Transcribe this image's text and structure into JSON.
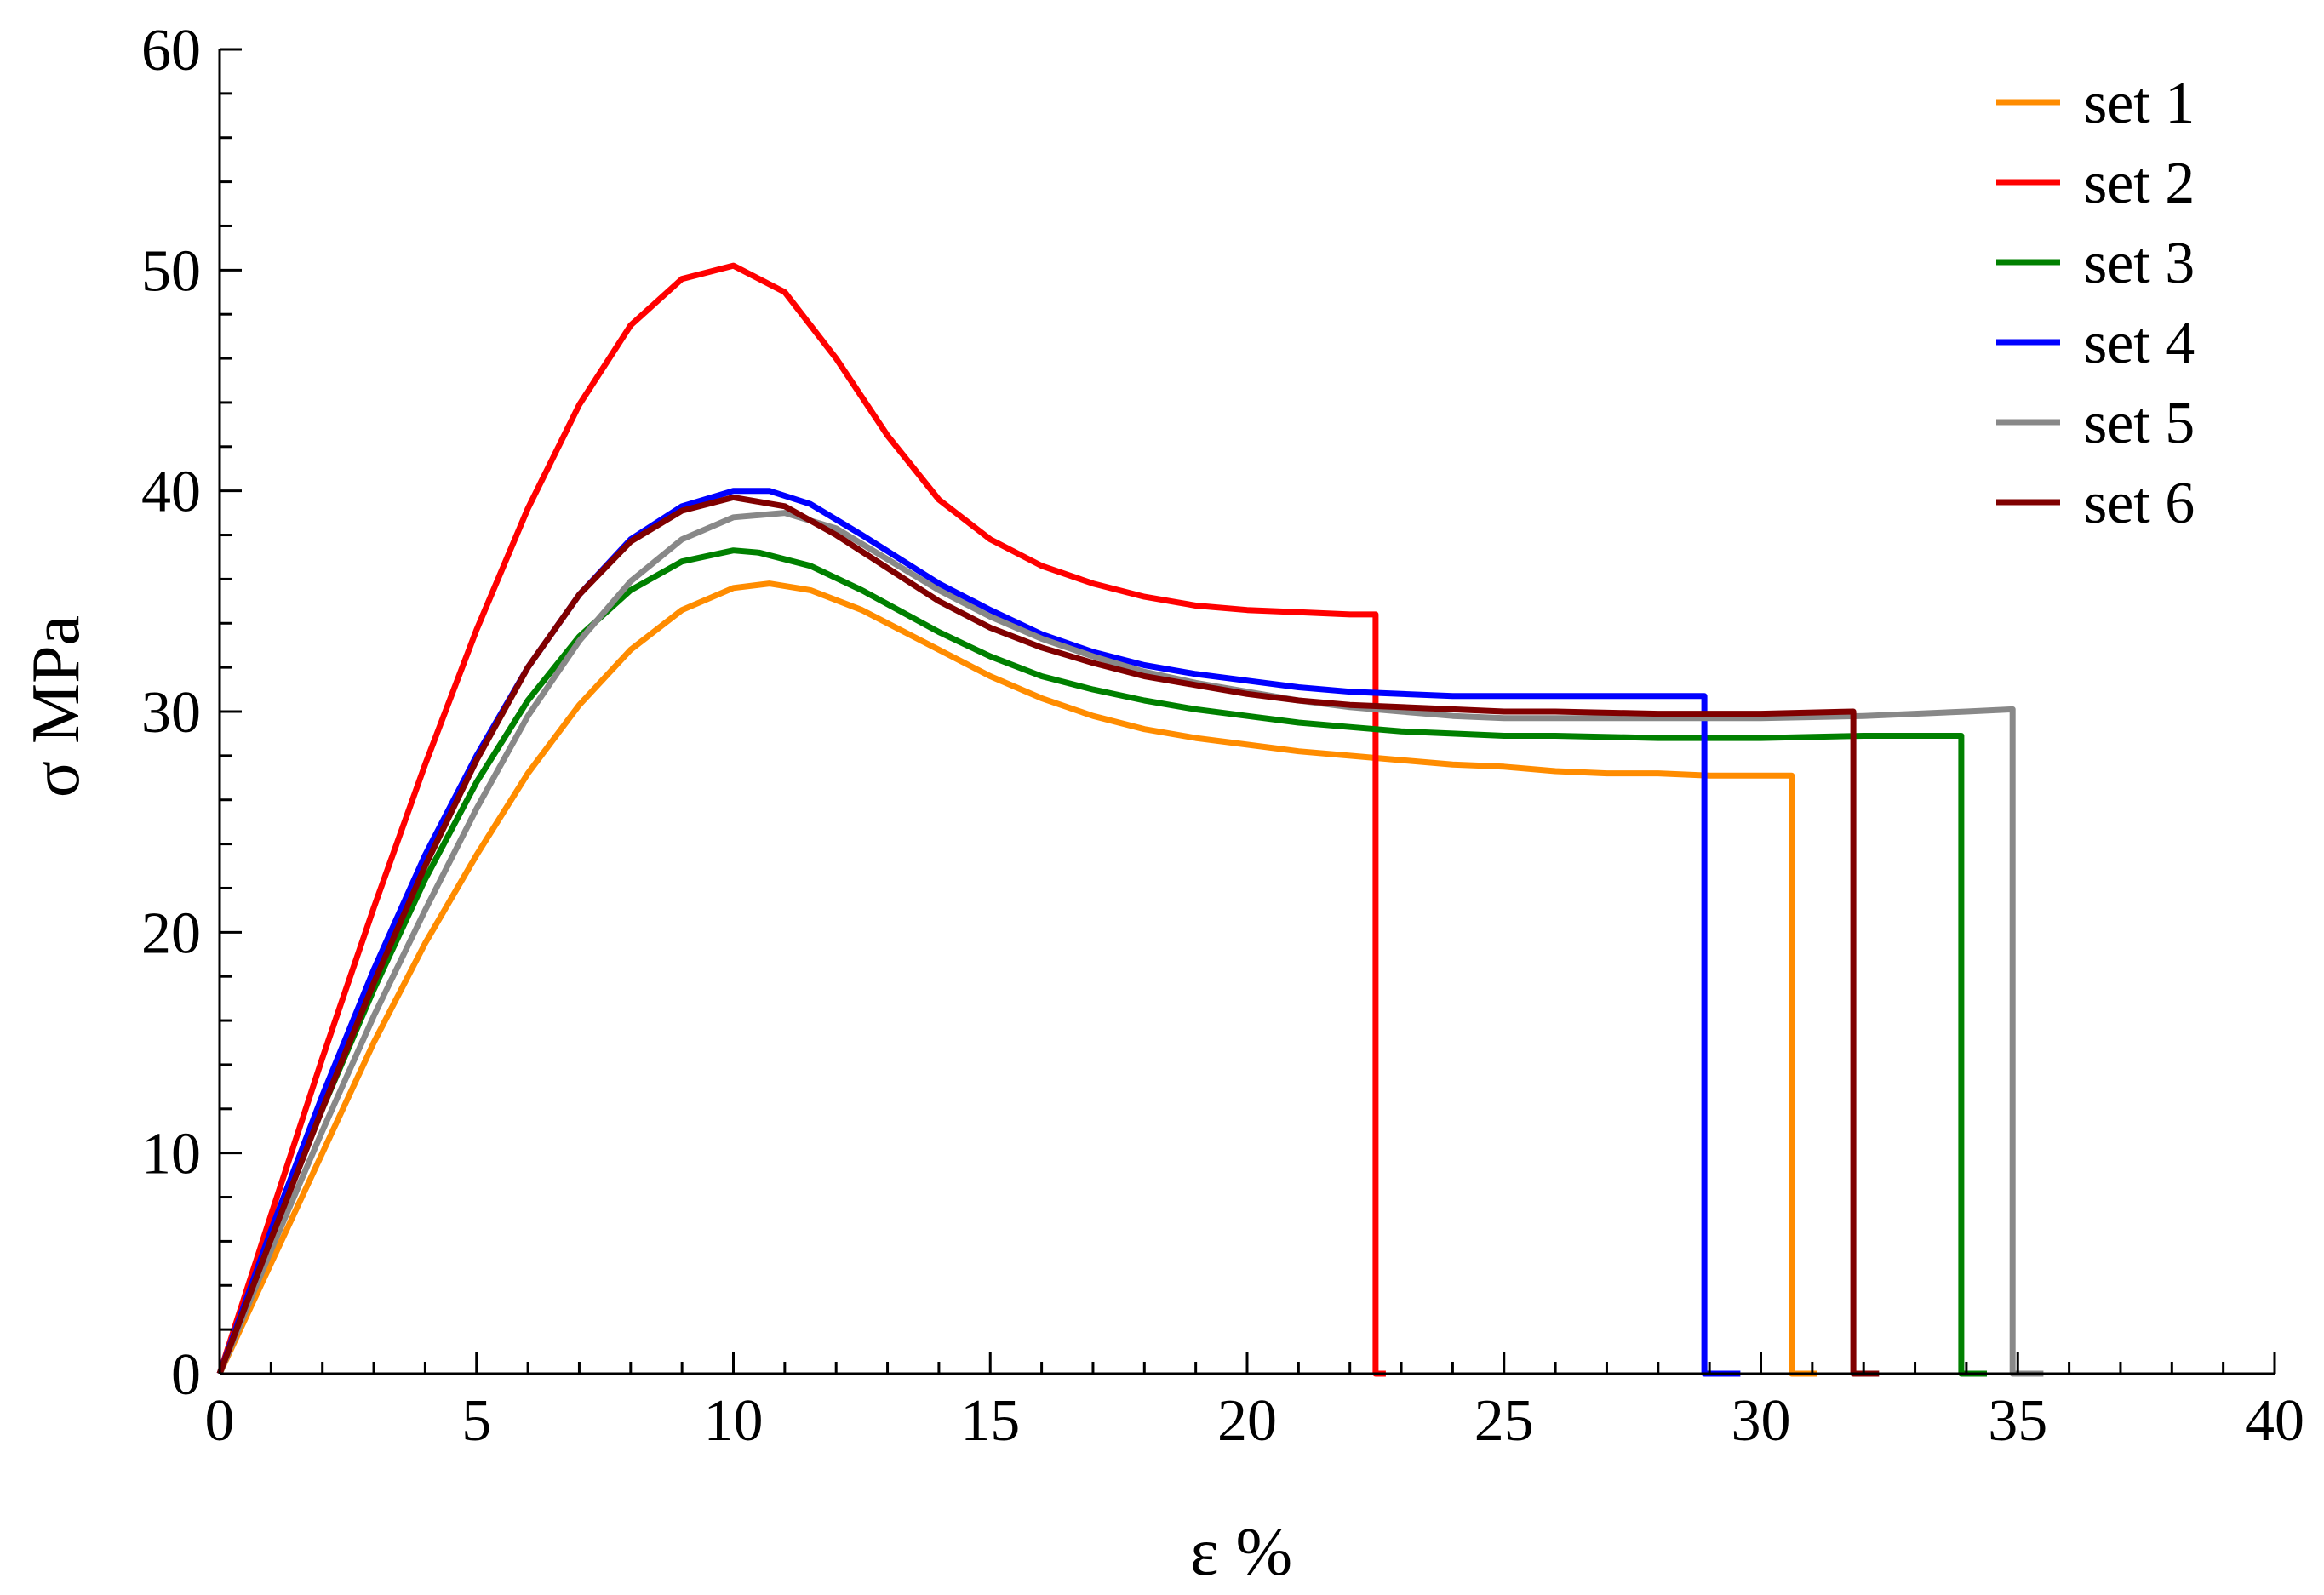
{
  "chart_data": {
    "type": "line",
    "title": "",
    "xlabel": "ε  %",
    "ylabel": "σ MPa",
    "xlim": [
      0,
      40
    ],
    "ylim": [
      0,
      60
    ],
    "x_ticks": [
      0,
      5,
      10,
      15,
      20,
      25,
      30,
      35,
      40
    ],
    "y_ticks": [
      0,
      10,
      20,
      30,
      40,
      50,
      60
    ],
    "x_tick_labels": [
      "0",
      "5",
      "10",
      "15",
      "20",
      "25",
      "30",
      "35",
      "40"
    ],
    "y_tick_labels": [
      "0",
      "10",
      "20",
      "30",
      "40",
      "50",
      "60"
    ],
    "grid": false,
    "legend_position": "top-right",
    "series": [
      {
        "name": "set 1",
        "color": "#ff8c00",
        "points": [
          [
            0,
            0
          ],
          [
            1,
            5
          ],
          [
            2,
            10
          ],
          [
            3,
            15
          ],
          [
            4,
            19.5
          ],
          [
            5,
            23.5
          ],
          [
            6,
            27.2
          ],
          [
            7,
            30.3
          ],
          [
            8,
            32.8
          ],
          [
            9,
            34.6
          ],
          [
            10,
            35.6
          ],
          [
            10.7,
            35.8
          ],
          [
            11.5,
            35.5
          ],
          [
            12.5,
            34.6
          ],
          [
            14,
            32.8
          ],
          [
            15,
            31.6
          ],
          [
            16,
            30.6
          ],
          [
            17,
            29.8
          ],
          [
            18,
            29.2
          ],
          [
            19,
            28.8
          ],
          [
            20,
            28.5
          ],
          [
            21,
            28.2
          ],
          [
            22,
            28
          ],
          [
            23,
            27.8
          ],
          [
            24,
            27.6
          ],
          [
            25,
            27.5
          ],
          [
            26,
            27.3
          ],
          [
            27,
            27.2
          ],
          [
            28,
            27.2
          ],
          [
            29,
            27.1
          ],
          [
            30,
            27.1
          ],
          [
            30.6,
            27.1
          ],
          [
            30.6,
            0
          ],
          [
            31.1,
            0
          ]
        ]
      },
      {
        "name": "set 2",
        "color": "#ff0000",
        "points": [
          [
            0,
            0
          ],
          [
            1,
            7.2
          ],
          [
            2,
            14.3
          ],
          [
            3,
            21.1
          ],
          [
            4,
            27.6
          ],
          [
            5,
            33.7
          ],
          [
            6,
            39.2
          ],
          [
            7,
            43.9
          ],
          [
            8,
            47.5
          ],
          [
            9,
            49.6
          ],
          [
            10,
            50.2
          ],
          [
            11,
            49
          ],
          [
            12,
            46
          ],
          [
            13,
            42.5
          ],
          [
            14,
            39.6
          ],
          [
            15,
            37.8
          ],
          [
            16,
            36.6
          ],
          [
            17,
            35.8
          ],
          [
            18,
            35.2
          ],
          [
            19,
            34.8
          ],
          [
            20,
            34.6
          ],
          [
            21,
            34.5
          ],
          [
            22,
            34.4
          ],
          [
            22.5,
            34.4
          ],
          [
            22.5,
            0
          ],
          [
            22.7,
            0
          ]
        ]
      },
      {
        "name": "set 3",
        "color": "#008000",
        "points": [
          [
            0,
            0
          ],
          [
            1,
            6.2
          ],
          [
            2,
            12
          ],
          [
            3,
            17.4
          ],
          [
            4,
            22.4
          ],
          [
            5,
            26.8
          ],
          [
            6,
            30.5
          ],
          [
            7,
            33.4
          ],
          [
            8,
            35.5
          ],
          [
            9,
            36.8
          ],
          [
            10,
            37.3
          ],
          [
            10.5,
            37.2
          ],
          [
            11.5,
            36.6
          ],
          [
            12.5,
            35.5
          ],
          [
            14,
            33.6
          ],
          [
            15,
            32.5
          ],
          [
            16,
            31.6
          ],
          [
            17,
            31
          ],
          [
            18,
            30.5
          ],
          [
            19,
            30.1
          ],
          [
            20,
            29.8
          ],
          [
            21,
            29.5
          ],
          [
            22,
            29.3
          ],
          [
            23,
            29.1
          ],
          [
            24,
            29
          ],
          [
            25,
            28.9
          ],
          [
            26,
            28.9
          ],
          [
            28,
            28.8
          ],
          [
            30,
            28.8
          ],
          [
            32,
            28.9
          ],
          [
            33.9,
            28.9
          ],
          [
            33.9,
            0
          ],
          [
            34.4,
            0
          ]
        ]
      },
      {
        "name": "set 4",
        "color": "#0000ff",
        "points": [
          [
            0,
            0
          ],
          [
            1,
            6.5
          ],
          [
            2,
            12.6
          ],
          [
            3,
            18.3
          ],
          [
            4,
            23.5
          ],
          [
            5,
            28
          ],
          [
            6,
            32
          ],
          [
            7,
            35.3
          ],
          [
            8,
            37.8
          ],
          [
            9,
            39.3
          ],
          [
            10,
            40
          ],
          [
            10.7,
            40
          ],
          [
            11.5,
            39.4
          ],
          [
            12.5,
            38
          ],
          [
            14,
            35.8
          ],
          [
            15,
            34.6
          ],
          [
            16,
            33.5
          ],
          [
            17,
            32.7
          ],
          [
            18,
            32.1
          ],
          [
            19,
            31.7
          ],
          [
            20,
            31.4
          ],
          [
            21,
            31.1
          ],
          [
            22,
            30.9
          ],
          [
            23,
            30.8
          ],
          [
            24,
            30.7
          ],
          [
            26,
            30.7
          ],
          [
            28,
            30.7
          ],
          [
            28.9,
            30.7
          ],
          [
            28.9,
            0
          ],
          [
            29.6,
            0
          ]
        ]
      },
      {
        "name": "set 5",
        "color": "#888888",
        "points": [
          [
            0,
            0
          ],
          [
            1,
            5.6
          ],
          [
            2,
            11
          ],
          [
            3,
            16.2
          ],
          [
            4,
            21
          ],
          [
            5,
            25.6
          ],
          [
            6,
            29.8
          ],
          [
            7,
            33.2
          ],
          [
            8,
            35.9
          ],
          [
            9,
            37.8
          ],
          [
            10,
            38.8
          ],
          [
            11,
            39
          ],
          [
            12,
            38.3
          ],
          [
            13,
            36.9
          ],
          [
            14,
            35.5
          ],
          [
            15,
            34.3
          ],
          [
            16,
            33.3
          ],
          [
            17,
            32.5
          ],
          [
            18,
            31.8
          ],
          [
            19,
            31.3
          ],
          [
            20,
            30.9
          ],
          [
            21,
            30.5
          ],
          [
            22,
            30.2
          ],
          [
            23,
            30
          ],
          [
            24,
            29.8
          ],
          [
            25,
            29.7
          ],
          [
            26,
            29.7
          ],
          [
            28,
            29.7
          ],
          [
            30,
            29.7
          ],
          [
            32,
            29.8
          ],
          [
            33,
            29.9
          ],
          [
            34,
            30
          ],
          [
            34.9,
            30.1
          ],
          [
            34.9,
            0
          ],
          [
            35.5,
            0
          ]
        ]
      },
      {
        "name": "set 6",
        "color": "#800000",
        "points": [
          [
            0,
            0
          ],
          [
            1,
            6.1
          ],
          [
            2,
            12
          ],
          [
            3,
            17.7
          ],
          [
            4,
            23
          ],
          [
            5,
            27.8
          ],
          [
            6,
            32
          ],
          [
            7,
            35.3
          ],
          [
            8,
            37.7
          ],
          [
            9,
            39.1
          ],
          [
            10,
            39.7
          ],
          [
            11,
            39.3
          ],
          [
            12,
            38
          ],
          [
            13,
            36.5
          ],
          [
            14,
            35
          ],
          [
            15,
            33.8
          ],
          [
            16,
            32.9
          ],
          [
            17,
            32.2
          ],
          [
            18,
            31.6
          ],
          [
            19,
            31.2
          ],
          [
            20,
            30.8
          ],
          [
            21,
            30.5
          ],
          [
            22,
            30.3
          ],
          [
            23,
            30.2
          ],
          [
            24,
            30.1
          ],
          [
            25,
            30
          ],
          [
            26,
            30
          ],
          [
            28,
            29.9
          ],
          [
            30,
            29.9
          ],
          [
            31.8,
            30
          ],
          [
            31.8,
            0
          ],
          [
            32.3,
            0
          ]
        ]
      }
    ]
  }
}
